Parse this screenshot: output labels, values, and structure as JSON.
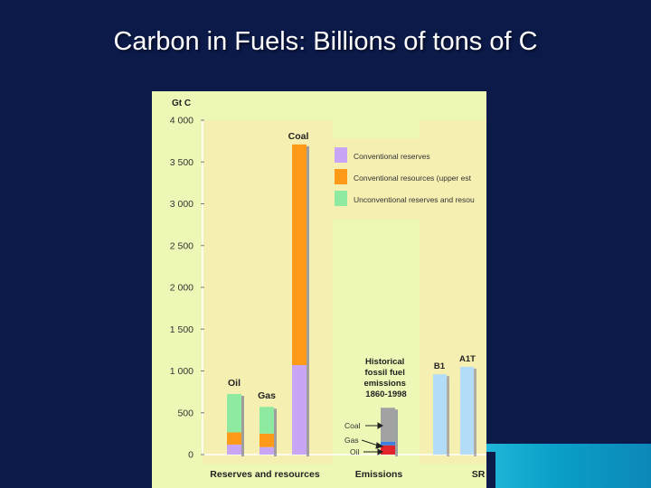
{
  "slide": {
    "title": "Carbon in Fuels: Billions of tons of C"
  },
  "colors": {
    "background": "#0c1a4a",
    "panel": "#eef8b6",
    "panel_band": "#f6efb2",
    "conventional_reserves": "#c9a6f5",
    "conventional_resources": "#ff9a18",
    "unconventional": "#8eeaa0",
    "historical_coal": "#a2a2a2",
    "historical_gas": "#3f7fe0",
    "historical_oil": "#e2252d",
    "scenario": "#b3dcf6",
    "accent_bar": "#0aa0c8"
  },
  "chart_data": {
    "type": "bar",
    "stacked": true,
    "ylabel": "Gt C",
    "ylim": [
      0,
      4000
    ],
    "yticks": [
      0,
      500,
      1000,
      1500,
      2000,
      2500,
      3000,
      3500,
      4000
    ],
    "ytick_labels": [
      "0",
      "500",
      "1 000",
      "1 500",
      "2 000",
      "2 500",
      "3 000",
      "3 500",
      "4 000"
    ],
    "grid": false,
    "legend_position": "top-right",
    "legend": [
      {
        "key": "conventional_reserves",
        "label": "Conventional reserves"
      },
      {
        "key": "conventional_resources",
        "label": "Conventional resources (upper est"
      },
      {
        "key": "unconventional",
        "label": "Unconventional reserves and resou"
      }
    ],
    "groups": [
      {
        "label": "Reserves and resources",
        "bars": [
          {
            "label": "Oil",
            "segments": {
              "conventional_reserves": 120,
              "conventional_resources": 145,
              "unconventional": 460
            }
          },
          {
            "label": "Gas",
            "segments": {
              "conventional_reserves": 90,
              "conventional_resources": 160,
              "unconventional": 320
            }
          },
          {
            "label": "Coal",
            "segments": {
              "conventional_reserves": 1070,
              "conventional_resources": 2640,
              "unconventional": 0
            }
          }
        ]
      },
      {
        "label": "Emissions",
        "annotation": "Historical fossil fuel emissions 1860-1998",
        "bars": [
          {
            "label": "",
            "segments": {
              "oil": 110,
              "gas": 45,
              "coal": 405
            }
          }
        ],
        "segment_labels": [
          "Coal",
          "Gas",
          "Oil"
        ]
      },
      {
        "label": "SR",
        "bars": [
          {
            "label": "B1",
            "value": 960
          },
          {
            "label": "A1T",
            "value": 1050
          }
        ]
      }
    ]
  }
}
